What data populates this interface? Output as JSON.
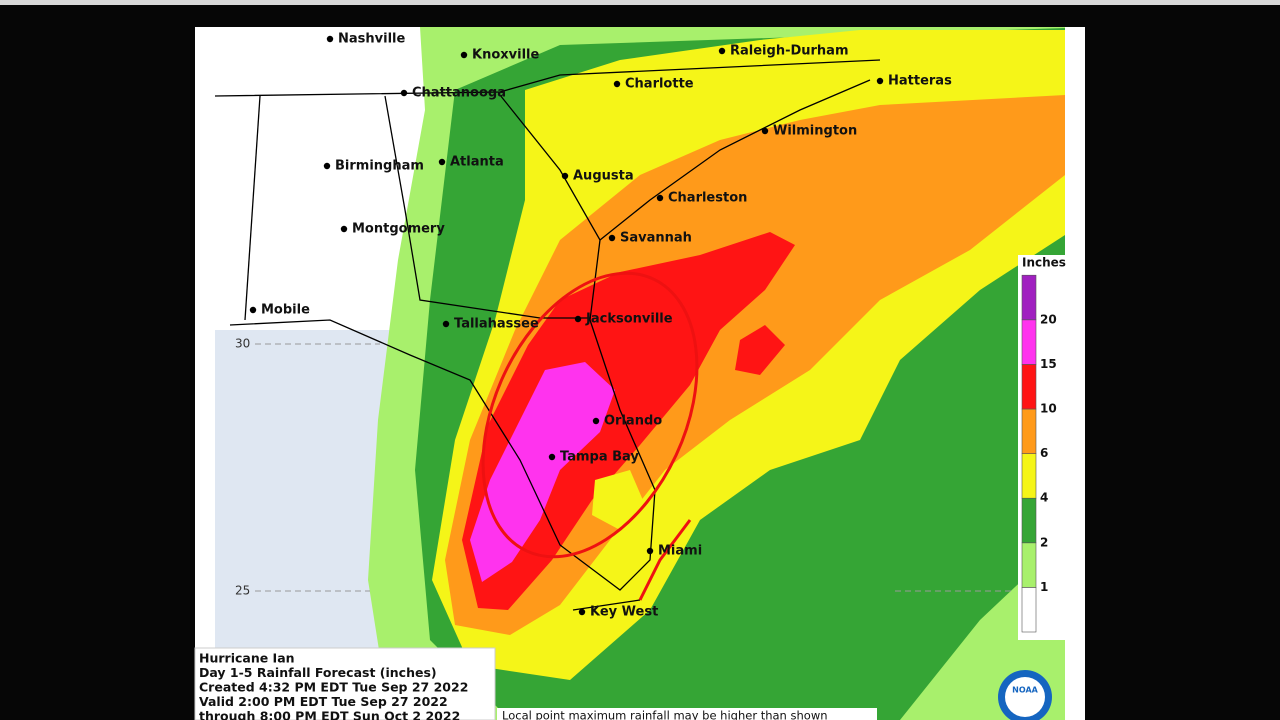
{
  "map": {
    "cities": [
      "Nashville",
      "Knoxville",
      "Raleigh-Durham",
      "Chattanooga",
      "Charlotte",
      "Hatteras",
      "Wilmington",
      "Birmingham",
      "Atlanta",
      "Augusta",
      "Charleston",
      "Montgomery",
      "Savannah",
      "Mobile",
      "Tallahassee",
      "Jacksonville",
      "Orlando",
      "Tampa Bay",
      "Miami",
      "Key West"
    ],
    "latitudes": [
      "30",
      "25"
    ]
  },
  "legend": {
    "title": "Inches",
    "labels": [
      "1",
      "2",
      "4",
      "6",
      "10",
      "15",
      "20"
    ],
    "colors": [
      "#ffffff",
      "#a8f06c",
      "#35a535",
      "#f5f518",
      "#ff9a1a",
      "#ff1414",
      "#ff33ee",
      "#a020c0"
    ]
  },
  "caption": {
    "lines": [
      "Hurricane Ian",
      "Day 1-5 Rainfall Forecast (inches)",
      "Created 4:32 PM EDT Tue Sep 27 2022",
      "Valid 2:00 PM EDT Tue Sep 27 2022",
      "through 8:00 PM EDT Sun Oct 2 2022"
    ]
  },
  "footer": "Local point maximum rainfall may be higher than shown",
  "logo": "NOAA"
}
